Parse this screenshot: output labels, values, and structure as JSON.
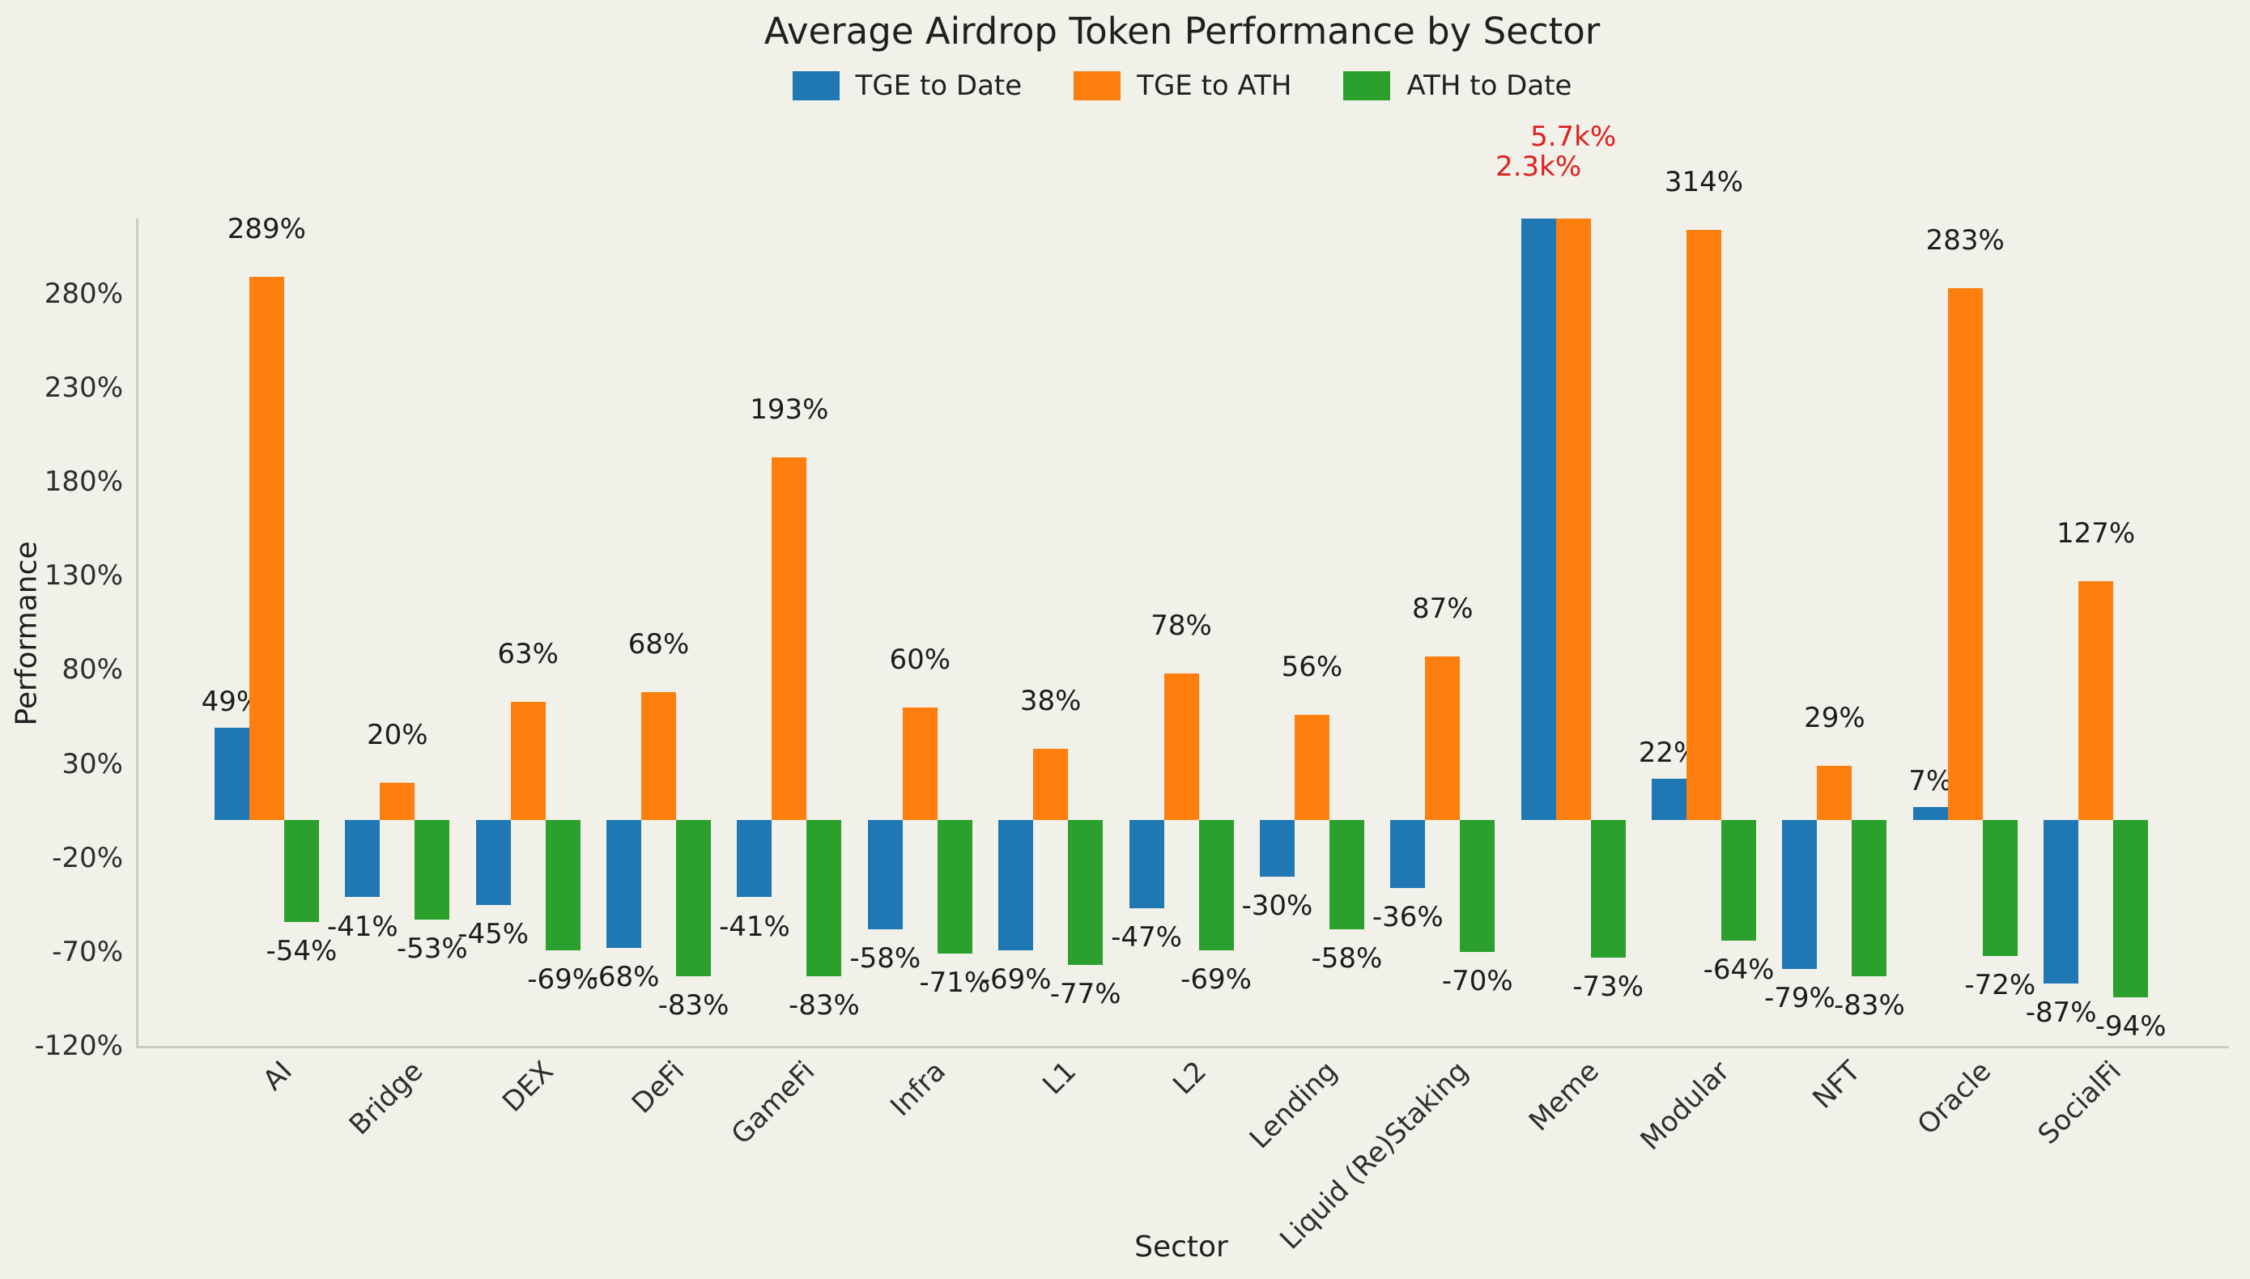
{
  "figure": {
    "background_color": "#f2f1e9",
    "spine_color": "#cbcbc4",
    "text_color": "#1f1f1f",
    "tick_text_color": "#2e2e2e"
  },
  "chart_data": {
    "type": "bar",
    "title": "Average Airdrop Token Performance by Sector",
    "xlabel": "Sector",
    "ylabel": "Performance",
    "grid": false,
    "legend_position": "top-center",
    "ylim": [
      -120,
      320
    ],
    "yticks": [
      -120,
      -70,
      -20,
      30,
      80,
      130,
      180,
      230,
      280
    ],
    "ytick_suffix": "%",
    "categories": [
      "AI",
      "Bridge",
      "DEX",
      "DeFi",
      "GameFi",
      "Infra",
      "L1",
      "L2",
      "Lending",
      "Liquid (Re)Staking",
      "Meme",
      "Modular",
      "NFT",
      "Oracle",
      "SocialFi"
    ],
    "series": [
      {
        "name": "TGE to Date",
        "color": "#1f77b4",
        "values": [
          49,
          -41,
          -45,
          -68,
          -41,
          -58,
          -69,
          -47,
          -30,
          -36,
          2300,
          22,
          -79,
          7,
          -87
        ],
        "labels": [
          "49%",
          "-41%",
          "-45%",
          "-68%",
          "-41%",
          "-58%",
          "-69%",
          "-47%",
          "-30%",
          "-36%",
          "2.3k%",
          "22%",
          "-79%",
          "7%",
          "-87%"
        ]
      },
      {
        "name": "TGE to ATH",
        "color": "#ff7f0e",
        "values": [
          289,
          20,
          63,
          68,
          193,
          60,
          38,
          78,
          56,
          87,
          5700,
          314,
          29,
          283,
          127
        ],
        "labels": [
          "289%",
          "20%",
          "63%",
          "68%",
          "193%",
          "60%",
          "38%",
          "78%",
          "56%",
          "87%",
          "5.7k%",
          "314%",
          "29%",
          "283%",
          "127%"
        ]
      },
      {
        "name": "ATH to Date",
        "color": "#2ca02c",
        "values": [
          -54,
          -53,
          -69,
          -83,
          -83,
          -71,
          -77,
          -69,
          -58,
          -70,
          -73,
          -64,
          -83,
          -72,
          -94
        ],
        "labels": [
          "-54%",
          "-53%",
          "-69%",
          "-83%",
          "-83%",
          "-71%",
          "-77%",
          "-69%",
          "-58%",
          "-70%",
          "-73%",
          "-64%",
          "-83%",
          "-72%",
          "-94%"
        ]
      }
    ],
    "label_colors": {
      "default": "#1c1c1c",
      "highlight": "#e0201f"
    },
    "highlighted_labels": [
      {
        "series_index": 0,
        "category_index": 10
      },
      {
        "series_index": 1,
        "category_index": 10
      }
    ]
  }
}
